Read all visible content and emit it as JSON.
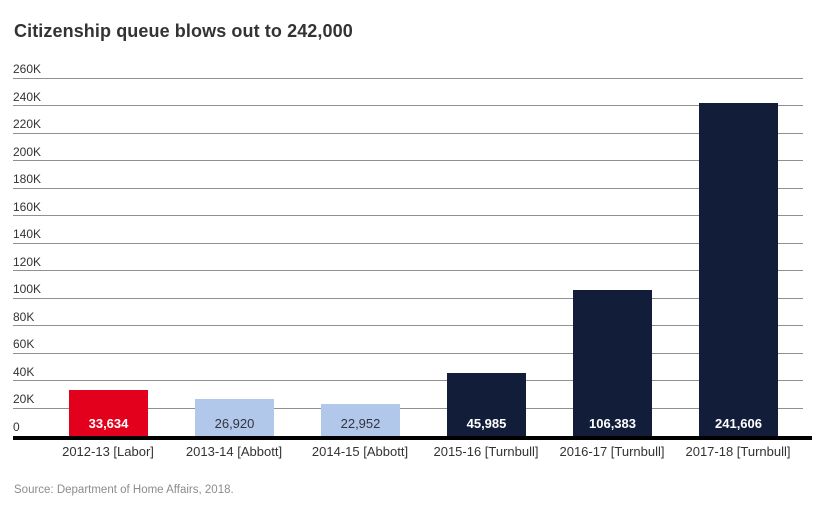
{
  "title": "Citizenship queue blows out to 242,000",
  "source": "Source: Department of Home Affairs, 2018.",
  "chart_data": {
    "type": "bar",
    "title": "Citizenship queue blows out to 242,000",
    "categories": [
      "2012-13 [Labor]",
      "2013-14 [Abbott]",
      "2014-15 [Abbott]",
      "2015-16 [Turnbull]",
      "2016-17 [Turnbull]",
      "2017-18 [Turnbull]"
    ],
    "values": [
      33634,
      26920,
      22952,
      45985,
      106383,
      241606
    ],
    "value_labels": [
      "33,634",
      "26,920",
      "22,952",
      "45,985",
      "106,383",
      "241,606"
    ],
    "bar_colors": [
      "#e2001d",
      "#b2c8ea",
      "#b2c8ea",
      "#121d3a",
      "#121d3a",
      "#121d3a"
    ],
    "value_label_colors": [
      "#ffffff",
      "#33333f",
      "#33333f",
      "#ffffff",
      "#ffffff",
      "#ffffff"
    ],
    "value_label_bold": [
      true,
      false,
      false,
      true,
      true,
      true
    ],
    "xlabel": "",
    "ylabel": "",
    "ylim": [
      0,
      260000
    ],
    "ytick_step": 20000,
    "yticks": [
      {
        "label": "260K",
        "value": 260000
      },
      {
        "label": "240K",
        "value": 240000
      },
      {
        "label": "220K",
        "value": 220000
      },
      {
        "label": "200K",
        "value": 200000
      },
      {
        "label": "180K",
        "value": 180000
      },
      {
        "label": "160K",
        "value": 160000
      },
      {
        "label": "140K",
        "value": 140000
      },
      {
        "label": "120K",
        "value": 120000
      },
      {
        "label": "100K",
        "value": 100000
      },
      {
        "label": "80K",
        "value": 80000
      },
      {
        "label": "60K",
        "value": 60000
      },
      {
        "label": "40K",
        "value": 40000
      },
      {
        "label": "20K",
        "value": 20000
      },
      {
        "label": "0",
        "value": 0
      }
    ],
    "grid": true,
    "legend": false,
    "source": "Source: Department of Home Affairs, 2018."
  },
  "colors": {
    "background": "#ffffff",
    "grid": "#909090",
    "axis": "#000000",
    "title_text": "#333333",
    "tick_text": "#333333",
    "category_text": "#333333",
    "source_text": "#8c8c8c"
  }
}
